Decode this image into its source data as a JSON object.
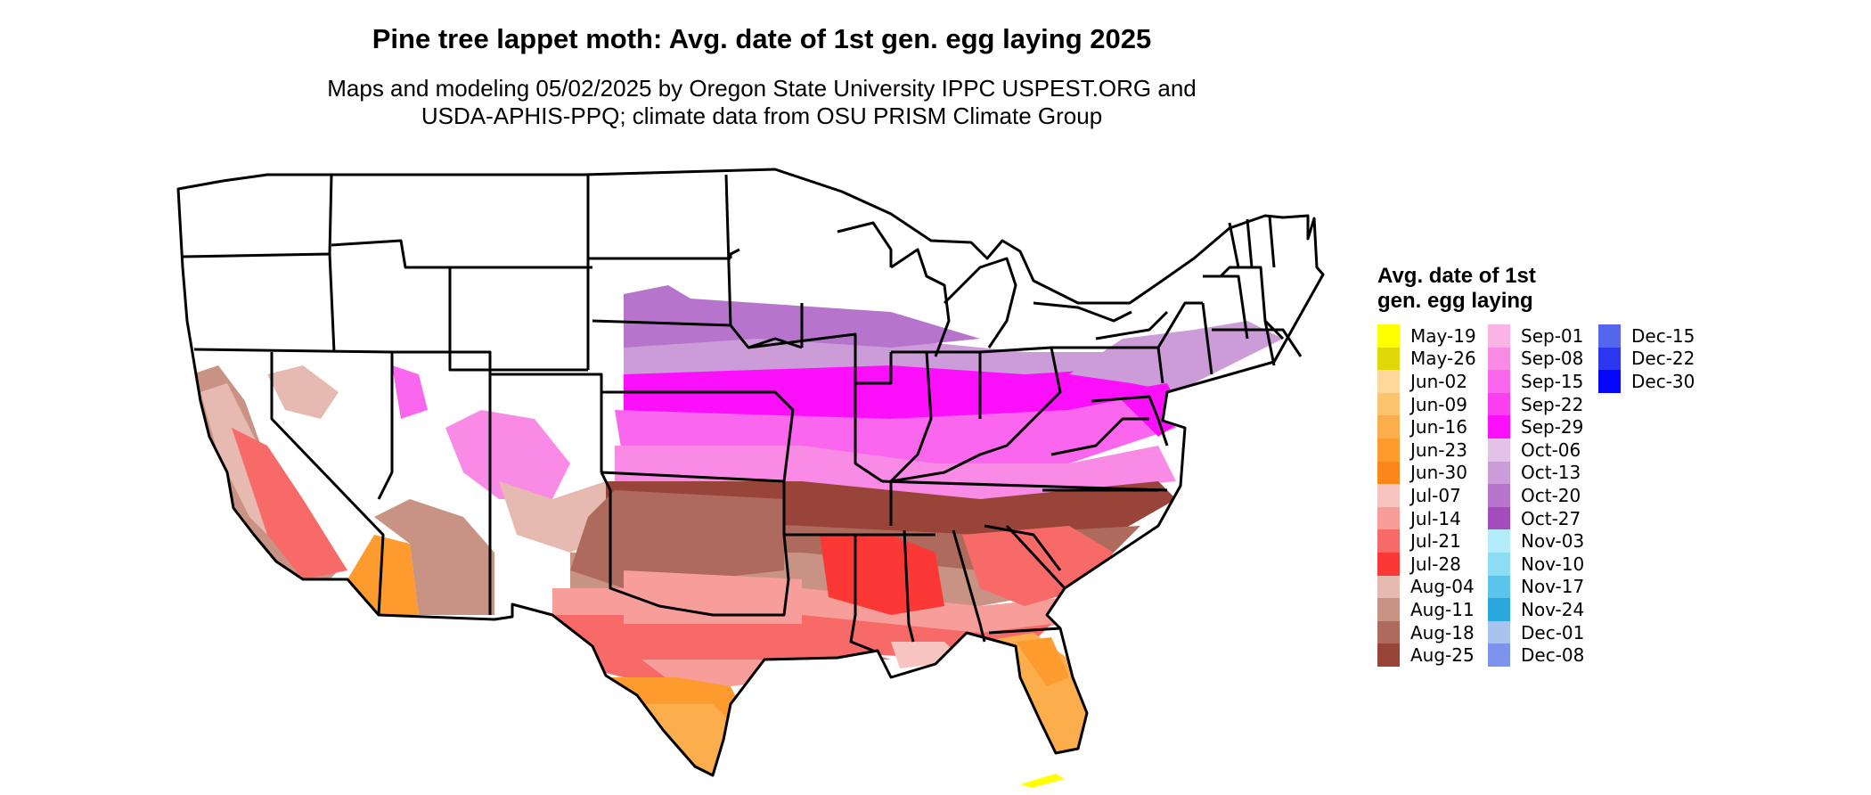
{
  "header": {
    "title": "Pine tree lappet moth: Avg. date of 1st gen. egg laying 2025",
    "subtitle_line1": "Maps and modeling 05/02/2025 by Oregon State University IPPC USPEST.ORG and",
    "subtitle_line2": "USDA-APHIS-PPQ; climate data from OSU PRISM Climate Group"
  },
  "legend": {
    "title": "Avg. date of 1st gen. egg laying",
    "items": [
      {
        "label": "May-19",
        "color": "#ffff00"
      },
      {
        "label": "May-26",
        "color": "#e1d80a"
      },
      {
        "label": "Jun-02",
        "color": "#fdd89a"
      },
      {
        "label": "Jun-09",
        "color": "#fcc46e"
      },
      {
        "label": "Jun-16",
        "color": "#fcae4c"
      },
      {
        "label": "Jun-23",
        "color": "#fd9b2e"
      },
      {
        "label": "Jun-30",
        "color": "#fd861a"
      },
      {
        "label": "Jul-07",
        "color": "#f7c4c0"
      },
      {
        "label": "Jul-14",
        "color": "#f79d9a"
      },
      {
        "label": "Jul-21",
        "color": "#f76a68"
      },
      {
        "label": "Jul-28",
        "color": "#fc3836"
      },
      {
        "label": "Aug-04",
        "color": "#e6bab0"
      },
      {
        "label": "Aug-11",
        "color": "#c89284"
      },
      {
        "label": "Aug-18",
        "color": "#ae6a5c"
      },
      {
        "label": "Aug-25",
        "color": "#984438"
      },
      {
        "label": "Sep-01",
        "color": "#fbb2e4"
      },
      {
        "label": "Sep-08",
        "color": "#f98ae6"
      },
      {
        "label": "Sep-15",
        "color": "#fb66ee"
      },
      {
        "label": "Sep-22",
        "color": "#fb3ef0"
      },
      {
        "label": "Sep-29",
        "color": "#fc10fc"
      },
      {
        "label": "Oct-06",
        "color": "#e2c2e6"
      },
      {
        "label": "Oct-13",
        "color": "#cc9cd8"
      },
      {
        "label": "Oct-20",
        "color": "#b674cc"
      },
      {
        "label": "Oct-27",
        "color": "#a24cbe"
      },
      {
        "label": "Nov-03",
        "color": "#b4ecfc"
      },
      {
        "label": "Nov-10",
        "color": "#8cdcf4"
      },
      {
        "label": "Nov-17",
        "color": "#5cc4ec"
      },
      {
        "label": "Nov-24",
        "color": "#28a8dc"
      },
      {
        "label": "Dec-01",
        "color": "#a8c4ee"
      },
      {
        "label": "Dec-08",
        "color": "#7c94ee"
      },
      {
        "label": "Dec-15",
        "color": "#5466ee"
      },
      {
        "label": "Dec-22",
        "color": "#2c36f0"
      },
      {
        "label": "Dec-30",
        "color": "#0606fc"
      }
    ]
  }
}
